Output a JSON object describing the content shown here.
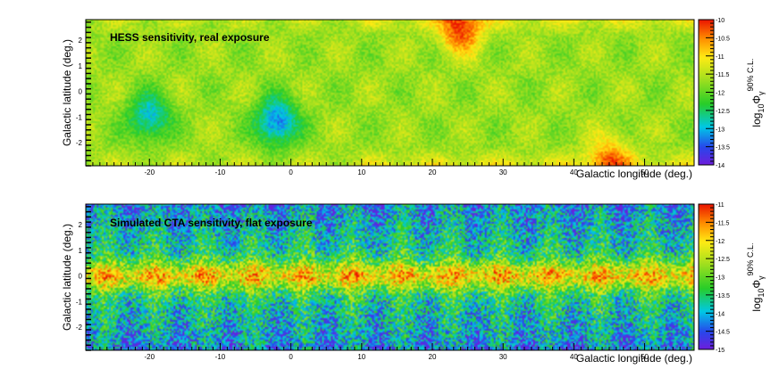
{
  "chart_data": [
    {
      "type": "heatmap",
      "title": "HESS sensitivity, real exposure",
      "xlabel": "Galactic longitude (deg.)",
      "ylabel": "Galactic latitude (deg.)",
      "colorbar_label": "log10 Φγ 90% C.L.",
      "colorbar_label_parts": {
        "base": "log",
        "sub": "10",
        "sym": "Φ",
        "symsub": "γ",
        "sup": "90% C.L."
      },
      "xlim": [
        -29,
        57
      ],
      "ylim": [
        -2.9,
        2.8
      ],
      "xticks": [
        -20,
        -10,
        0,
        10,
        20,
        30,
        40,
        50
      ],
      "xtick_labels": [
        "-20",
        "-10",
        "0",
        "10",
        "20",
        "30",
        "40",
        "50"
      ],
      "yticks": [
        2,
        1,
        0,
        -1,
        -2
      ],
      "ytick_labels": [
        "2",
        "1",
        "0",
        "-1",
        "-2"
      ],
      "zlim": [
        -14,
        -10
      ],
      "zticks": [
        -10,
        -10.5,
        -11,
        -11.5,
        -12,
        -12.5,
        -13,
        -13.5,
        -14
      ],
      "ztick_labels": [
        "-10",
        "-10.5",
        "-11",
        "-11.5",
        "-12",
        "-12.5",
        "-13",
        "-13.5",
        "-14"
      ],
      "features": [
        {
          "l": 24,
          "b": 2.4,
          "value": -10.2,
          "note": "hot spot at top"
        },
        {
          "l": -2,
          "b": -1.2,
          "value": -13.4,
          "note": "deep sensitivity near Galactic Centre"
        },
        {
          "l": -20,
          "b": -1.0,
          "value": -13.0
        },
        {
          "l": 45,
          "b": -2.6,
          "value": -10.6
        }
      ]
    },
    {
      "type": "heatmap",
      "title": "Simulated CTA sensitivity, flat exposure",
      "xlabel": "Galactic longitude (deg.)",
      "ylabel": "Galactic latitude (deg.)",
      "colorbar_label": "log10 Φγ 90% C.L.",
      "colorbar_label_parts": {
        "base": "log",
        "sub": "10",
        "sym": "Φ",
        "symsub": "γ",
        "sup": "90% C.L."
      },
      "xlim": [
        -29,
        57
      ],
      "ylim": [
        -2.9,
        2.8
      ],
      "xticks": [
        -20,
        -10,
        0,
        10,
        20,
        30,
        40,
        50
      ],
      "xtick_labels": [
        "-20",
        "-10",
        "0",
        "10",
        "20",
        "30",
        "40",
        "50"
      ],
      "yticks": [
        2,
        1,
        0,
        -1,
        -2
      ],
      "ytick_labels": [
        "2",
        "1",
        "0",
        "-1",
        "-2"
      ],
      "zlim": [
        -15,
        -11
      ],
      "zticks": [
        -11,
        -11.5,
        -12,
        -12.5,
        -13,
        -13.5,
        -14,
        -14.5,
        -15
      ],
      "ztick_labels": [
        "-11",
        "-11.5",
        "-12",
        "-12.5",
        "-13",
        "-13.5",
        "-14",
        "-14.5",
        "-15"
      ],
      "features": [
        {
          "l": 22,
          "b": 0.0,
          "value": -11.4,
          "note": "bright band along b=0"
        },
        {
          "l": -25,
          "b": 0.1,
          "value": -11.6
        },
        {
          "l": 0,
          "b": -2.0,
          "value": -15.0,
          "note": "deep sensitivity at high |b|"
        }
      ]
    }
  ]
}
